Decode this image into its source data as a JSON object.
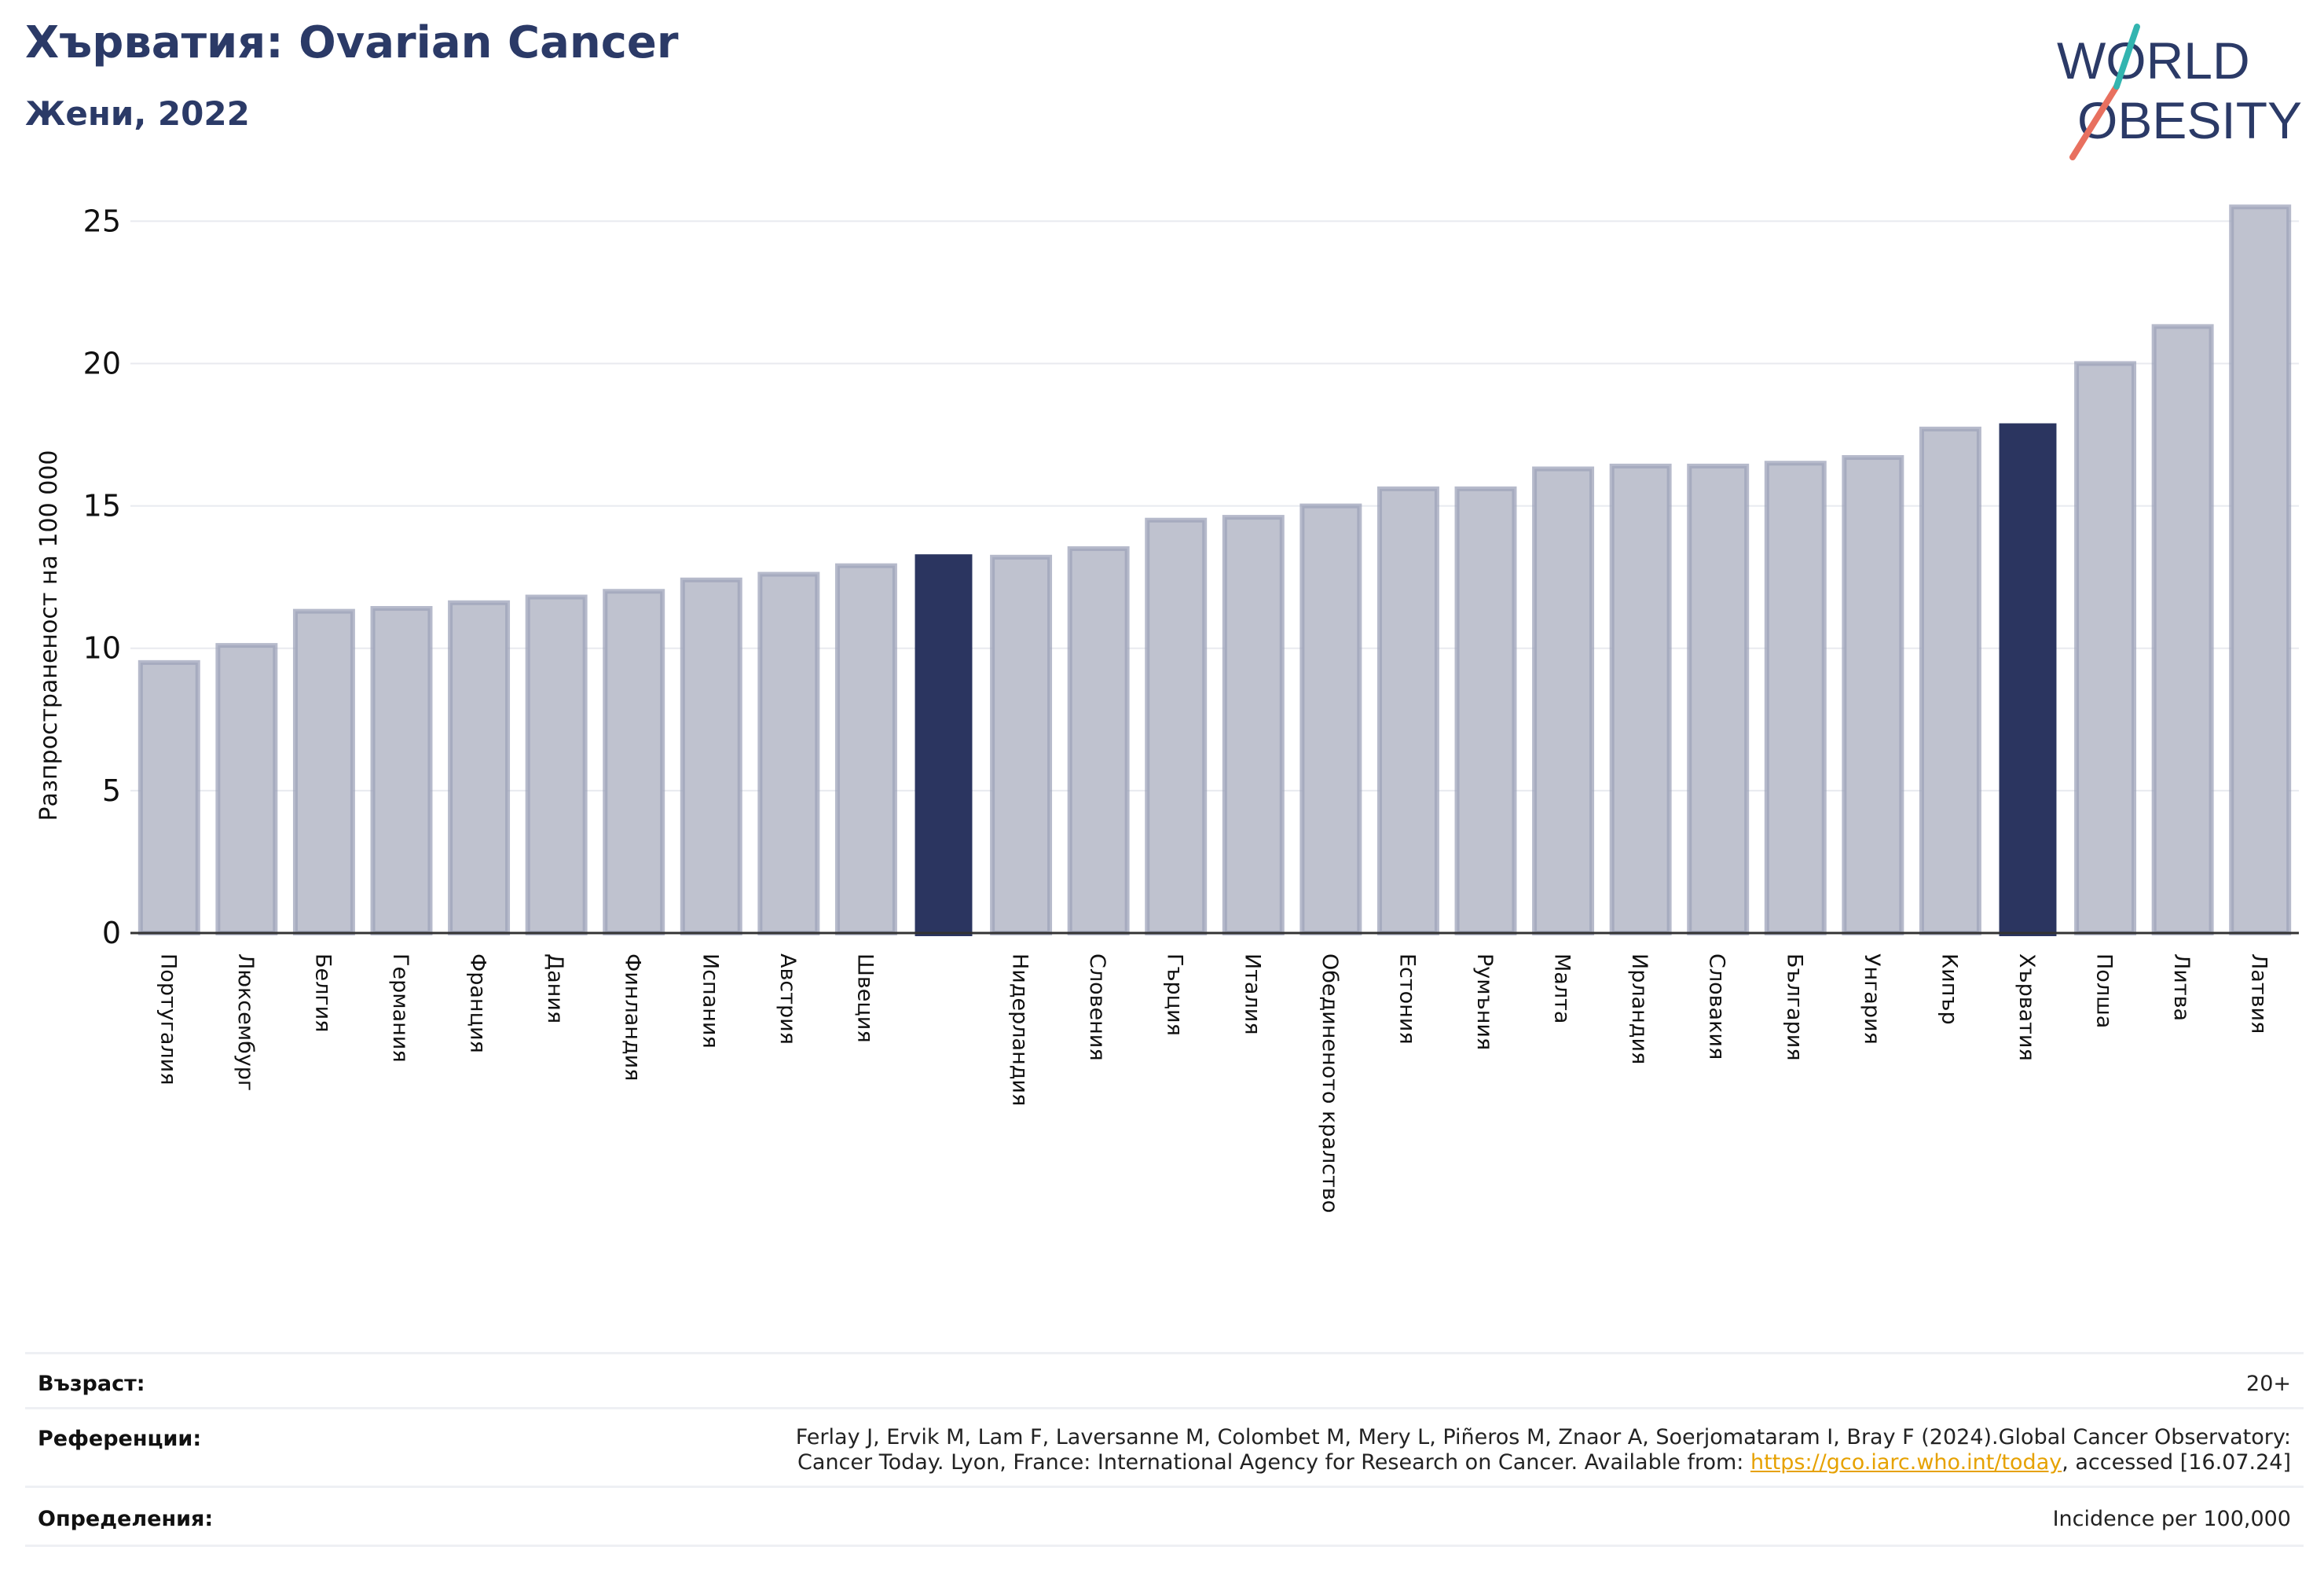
{
  "header": {
    "title": "Хърватия: Ovarian Cancer",
    "subtitle": "Жени, 2022"
  },
  "logo": {
    "line1": "WORLD",
    "line2": "OBESITY"
  },
  "colors": {
    "bar_default": "#bfc2cf",
    "bar_default_edge": "#9ea3ba",
    "bar_highlight": "#2b3560",
    "text": "#2b3a67",
    "grid": "#e8eaef"
  },
  "chart_data": {
    "type": "bar",
    "ylabel": "Разпространеност  на 100 000",
    "xlabel": "",
    "ylim": [
      0,
      26.5
    ],
    "yticks": [
      0,
      5,
      10,
      15,
      20,
      25
    ],
    "grid": true,
    "categories": [
      "Португалия",
      "Люксембург",
      "Белгия",
      "Германия",
      "Франция",
      "Дания",
      "Финландия",
      "Испания",
      "Австрия",
      "Швеция",
      "",
      "Нидерландия",
      "Словения",
      "Гърция",
      "Италия",
      "Обединеното кралство",
      "Естония",
      "Румъния",
      "Малта",
      "Ирландия",
      "Словакия",
      "България",
      "Унгария",
      "Кипър",
      "Хърватия",
      "Полша",
      "Литва",
      "Латвия"
    ],
    "values": [
      9.5,
      10.1,
      11.3,
      11.4,
      11.6,
      11.8,
      12.0,
      12.4,
      12.6,
      12.9,
      13.3,
      13.2,
      13.5,
      14.5,
      14.6,
      15.0,
      15.6,
      15.6,
      16.3,
      16.4,
      16.4,
      16.5,
      16.7,
      17.7,
      17.9,
      20.0,
      21.3,
      25.5
    ],
    "highlighted": [
      10,
      24
    ]
  },
  "footer": {
    "age_label": "Възраст:",
    "age_value": "20+",
    "ref_label": "Референции:",
    "ref_line1": "Ferlay J, Ervik M, Lam F, Laversanne M, Colombet M, Mery L, Piñeros M, Znaor A, Soerjomataram I, Bray F (2024).Global Cancer Observatory:",
    "ref_line2_pre": "Cancer Today. Lyon, France: International Agency for Research on Cancer. Available from: ",
    "ref_link": "https://gco.iarc.who.int/today",
    "ref_line2_post": ", accessed [16.07.24]",
    "def_label": "Определения:",
    "def_value": "Incidence per 100,000"
  }
}
